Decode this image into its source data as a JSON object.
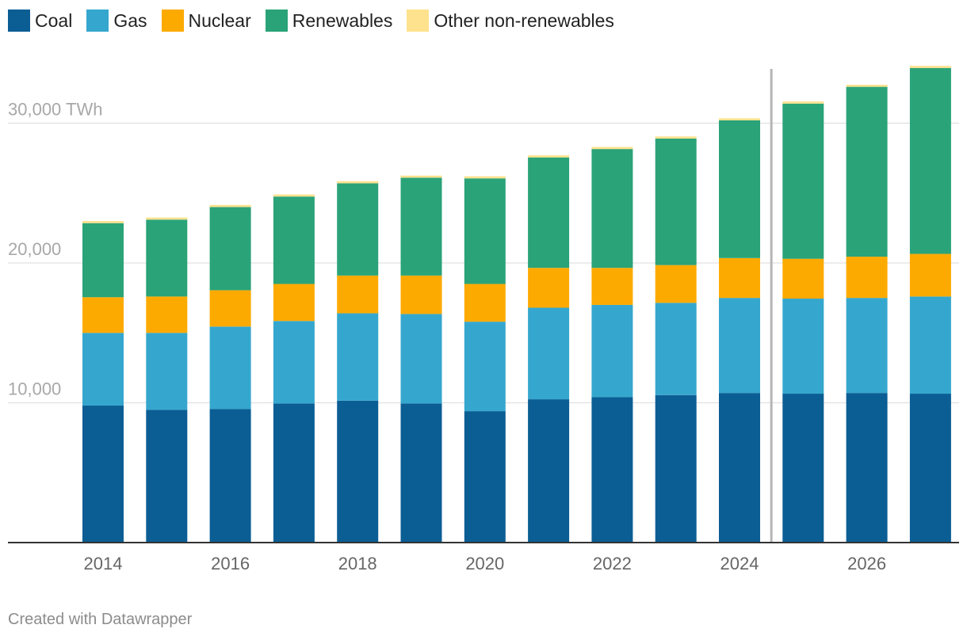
{
  "chart_data": {
    "type": "bar",
    "stacked": true,
    "unit": "TWh",
    "x": [
      2014,
      2015,
      2016,
      2017,
      2018,
      2019,
      2020,
      2021,
      2022,
      2023,
      2024,
      2025,
      2026,
      2027
    ],
    "series": [
      {
        "name": "Coal",
        "color": "#0b5e94",
        "values": [
          9800,
          9500,
          9550,
          9950,
          10150,
          9950,
          9400,
          10250,
          10400,
          10550,
          10700,
          10650,
          10700,
          10650
        ]
      },
      {
        "name": "Gas",
        "color": "#35a7ce",
        "values": [
          5200,
          5500,
          5900,
          5900,
          6250,
          6400,
          6400,
          6550,
          6600,
          6600,
          6800,
          6800,
          6800,
          6950
        ]
      },
      {
        "name": "Nuclear",
        "color": "#fdaa00",
        "values": [
          2550,
          2600,
          2600,
          2650,
          2700,
          2750,
          2700,
          2850,
          2650,
          2700,
          2850,
          2850,
          2950,
          3050
        ]
      },
      {
        "name": "Renewables",
        "color": "#2aa379",
        "values": [
          5300,
          5500,
          5950,
          6250,
          6600,
          7000,
          7550,
          7900,
          8500,
          9050,
          9850,
          11100,
          12150,
          13300
        ]
      },
      {
        "name": "Other non-renewables",
        "color": "#fee28d",
        "values": [
          150,
          150,
          150,
          150,
          150,
          150,
          150,
          150,
          150,
          150,
          150,
          150,
          150,
          150
        ]
      }
    ],
    "ylim": [
      0,
      33500
    ],
    "y_ticks": [
      10000,
      20000,
      30000
    ],
    "y_tick_labels": [
      "10,000",
      "20,000",
      "30,000 TWh"
    ],
    "x_tick_labels": [
      "2014",
      "2016",
      "2018",
      "2020",
      "2022",
      "2024",
      "2026"
    ],
    "forecast_divider_after": 2024,
    "grid": true,
    "legend_position": "top-left"
  },
  "footer": {
    "credit": "Created with Datawrapper"
  }
}
